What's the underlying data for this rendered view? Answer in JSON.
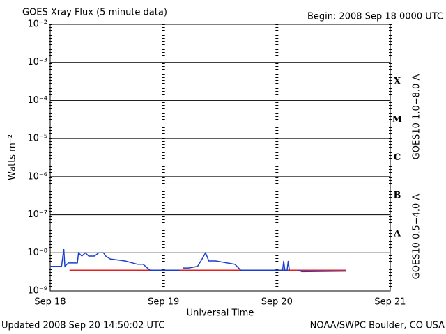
{
  "chart_data": {
    "type": "line",
    "title": "GOES Xray Flux (5 minute data)",
    "subtitle": "Begin:  2008 Sep 18 0000 UTC",
    "x_label": "Universal Time",
    "y_label": "Watts m⁻²",
    "footer_left": "Updated 2008 Sep 20 14:50:02 UTC",
    "footer_right": "NOAA/SWPC Boulder, CO USA",
    "flare_classes": [
      "A",
      "B",
      "C",
      "M",
      "X"
    ],
    "y_log": true,
    "grid": true,
    "xlim": [
      0,
      3
    ],
    "xticks": [
      {
        "value": 0,
        "label": "Sep 18"
      },
      {
        "value": 1,
        "label": "Sep 19"
      },
      {
        "value": 2,
        "label": "Sep 20"
      },
      {
        "value": 3,
        "label": "Sep 21"
      }
    ],
    "ylim": [
      1e-09,
      0.01
    ],
    "yticks": [
      {
        "value": 1e-09,
        "label": "10⁻⁹"
      },
      {
        "value": 1e-08,
        "label": "10⁻⁸"
      },
      {
        "value": 1e-07,
        "label": "10⁻⁷"
      },
      {
        "value": 1e-06,
        "label": "10⁻⁶"
      },
      {
        "value": 1e-05,
        "label": "10⁻⁵"
      },
      {
        "value": 0.0001,
        "label": "10⁻⁴"
      },
      {
        "value": 0.001,
        "label": "10⁻³"
      },
      {
        "value": 0.01,
        "label": "10⁻²"
      }
    ],
    "series": [
      {
        "name": "GOES10 1.0−8.0 A",
        "color": "#e02020",
        "x": [
          0.17,
          2.61
        ],
        "values": [
          3.5e-09,
          3.5e-09
        ]
      },
      {
        "name": "GOES10 0.5−4.0 A",
        "color": "#1a3fd0",
        "x": [
          0,
          0.1,
          0.12,
          0.13,
          0.16,
          0.2,
          0.24,
          0.25,
          0.28,
          0.31,
          0.34,
          0.39,
          0.43,
          0.47,
          0.49,
          0.53,
          0.66,
          0.77,
          0.82,
          0.88,
          1.14,
          1.15,
          1.17,
          1.22,
          1.3,
          1.34,
          1.37,
          1.4,
          1.46,
          1.63,
          1.68,
          2.05,
          2.06,
          2.07,
          2.09,
          2.1,
          2.11,
          2.15,
          2.19,
          2.22,
          2.61
        ],
        "values": [
          4.4e-09,
          4.4e-09,
          1.25e-08,
          4.4e-09,
          5.4e-09,
          5.4e-09,
          5.4e-09,
          1e-08,
          8.2e-09,
          1e-08,
          8.2e-09,
          8.2e-09,
          1e-08,
          1e-08,
          8.2e-09,
          6.9e-09,
          6.1e-09,
          5e-09,
          5e-09,
          3.5e-09,
          3.5e-09,
          null,
          4e-09,
          4e-09,
          4.4e-09,
          6.9e-09,
          1e-08,
          6.1e-09,
          6.1e-09,
          5e-09,
          3.5e-09,
          3.5e-09,
          6.1e-09,
          3.5e-09,
          3.5e-09,
          6.1e-09,
          3.5e-09,
          null,
          3.5e-09,
          3.2e-09,
          3.3e-09
        ]
      }
    ]
  }
}
